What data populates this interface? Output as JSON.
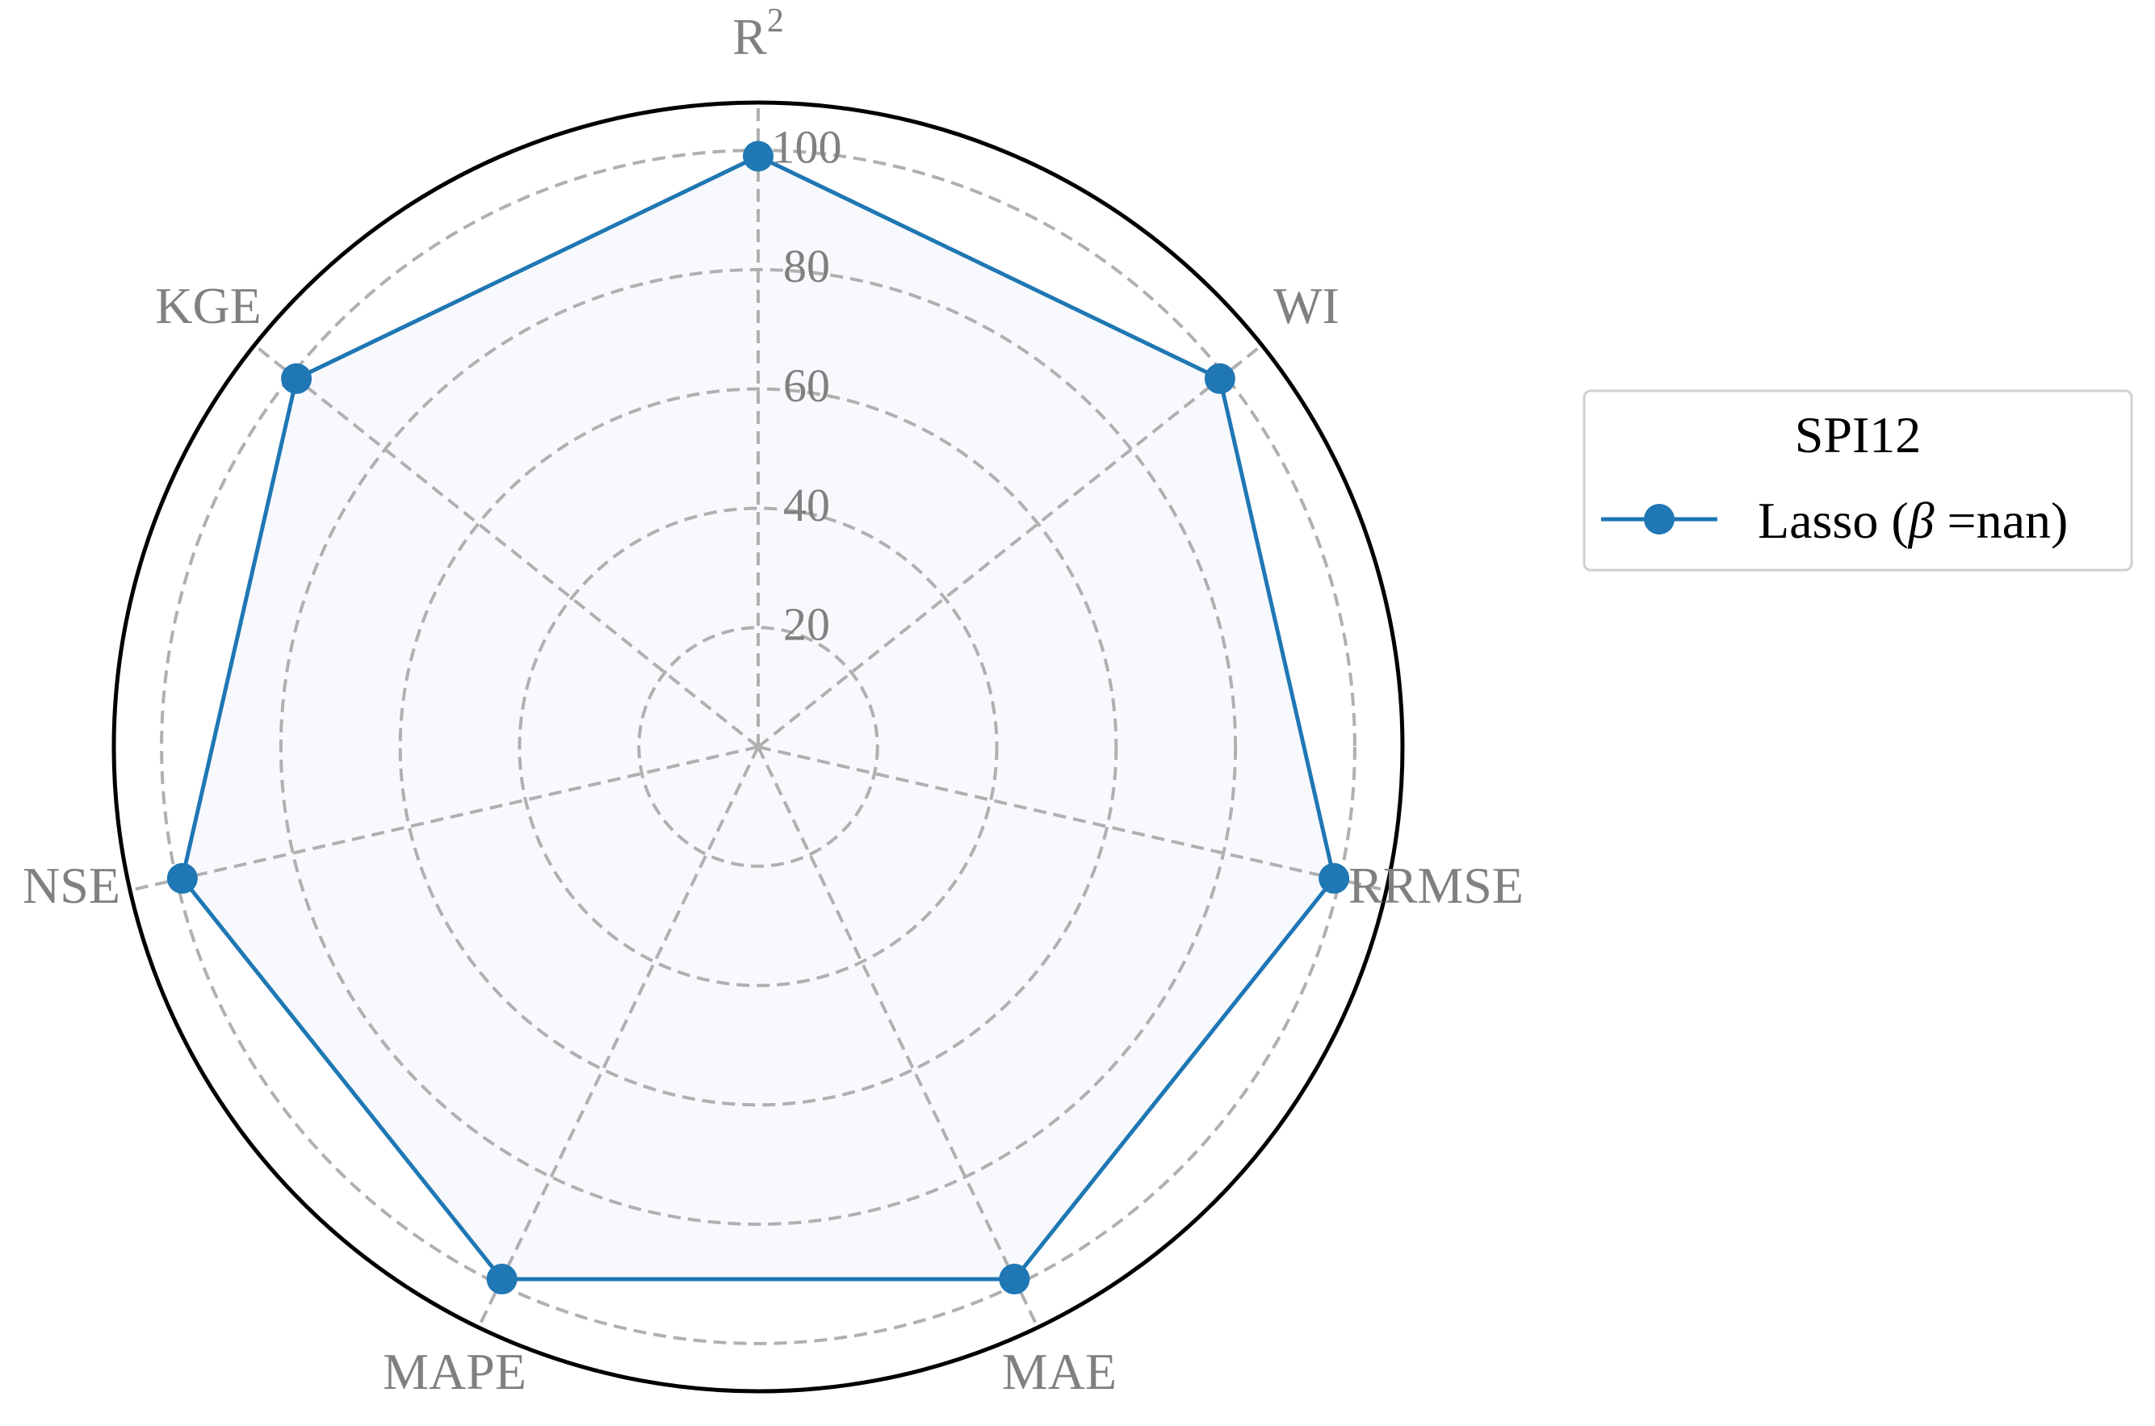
{
  "chart_data": {
    "type": "radar",
    "axes": [
      "R²",
      "WI",
      "RRMSE",
      "MAE",
      "MAPE",
      "NSE",
      "KGE"
    ],
    "axis_labels": [
      {
        "base": "R",
        "sup": "2"
      },
      {
        "base": "WI",
        "sup": ""
      },
      {
        "base": "RRMSE",
        "sup": ""
      },
      {
        "base": "MAE",
        "sup": ""
      },
      {
        "base": "MAPE",
        "sup": ""
      },
      {
        "base": "NSE",
        "sup": ""
      },
      {
        "base": "KGE",
        "sup": ""
      }
    ],
    "radial_ticks": [
      20,
      40,
      60,
      80,
      100
    ],
    "radial_tick_labels": [
      "20",
      "40",
      "60",
      "80",
      "100"
    ],
    "rlim": [
      0,
      108
    ],
    "grid": true,
    "series": [
      {
        "name": "Lasso (β =nan)",
        "name_prefix": "Lasso (",
        "name_symbol": "β",
        "name_suffix": " =nan)",
        "values": [
          99,
          99,
          99,
          99,
          99,
          99,
          99
        ],
        "color": "#1f77b4",
        "fill": "#f7f9fc"
      }
    ],
    "legend": {
      "title": "SPI12",
      "placement": "right"
    }
  },
  "colors": {
    "grid": "#b0b0b0",
    "label": "#808080",
    "frame": "#000000",
    "legend_border": "#d0d0d0"
  }
}
